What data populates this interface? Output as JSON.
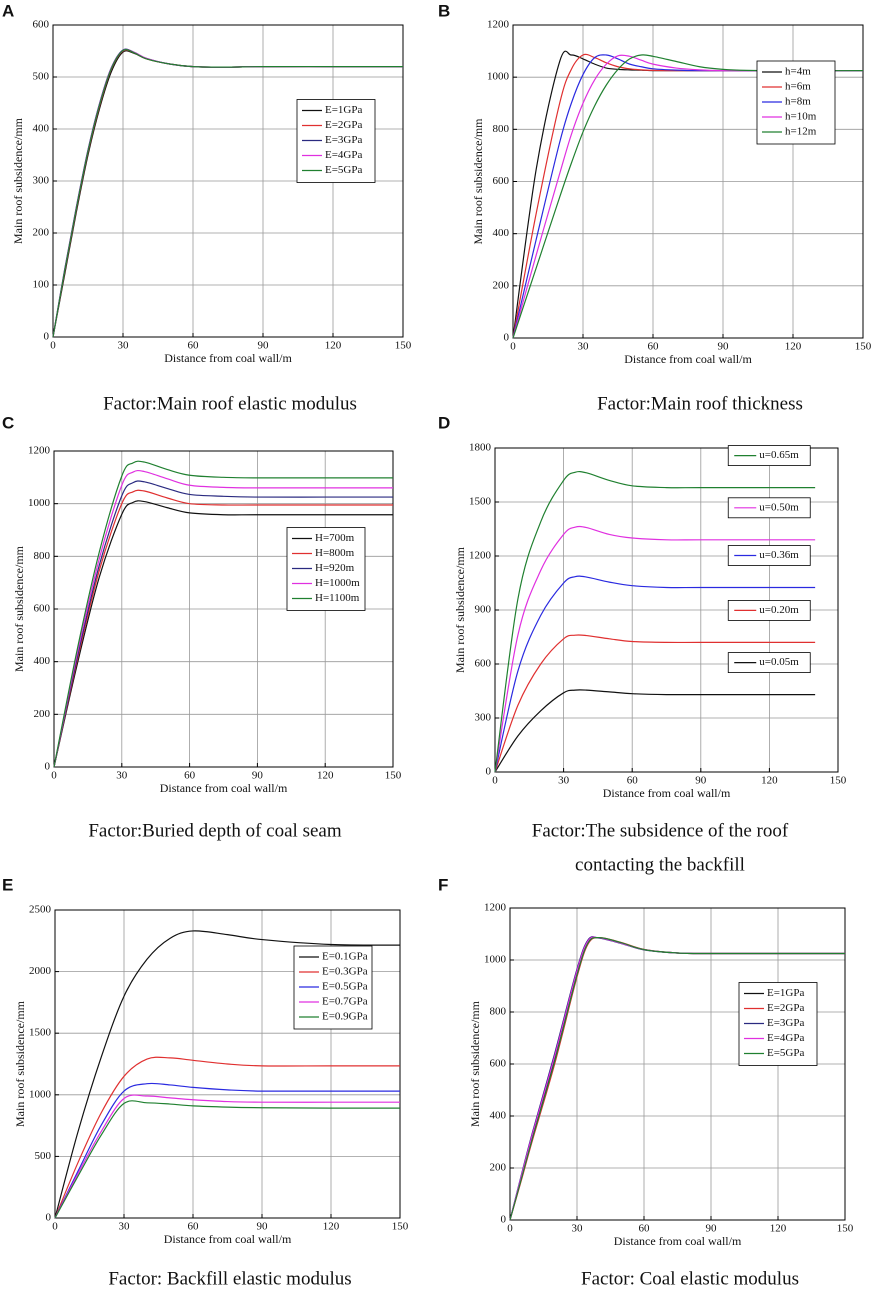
{
  "chart_data": [
    {
      "type": "line",
      "label": "A",
      "caption": [
        "Factor:Main roof elastic modulus"
      ],
      "xlabel": "Distance from coal wall/m",
      "ylabel": "Main roof subsidence/mm",
      "x": [
        0,
        5,
        10,
        15,
        20,
        25,
        30,
        35,
        40,
        50,
        60,
        75,
        90,
        120,
        150
      ],
      "series": [
        {
          "name": "E=1GPa",
          "color": "#111111",
          "values": [
            0,
            120,
            240,
            350,
            440,
            510,
            548,
            545,
            535,
            525,
            520,
            519,
            520,
            520,
            520
          ]
        },
        {
          "name": "E=2GPa",
          "color": "#e03030",
          "values": [
            0,
            125,
            245,
            355,
            445,
            515,
            550,
            546,
            535,
            525,
            520,
            519,
            520,
            520,
            520
          ]
        },
        {
          "name": "E=3GPa",
          "color": "#2a2a80",
          "values": [
            0,
            130,
            250,
            360,
            450,
            518,
            552,
            547,
            536,
            525,
            520,
            519,
            520,
            520,
            520
          ]
        },
        {
          "name": "E=4GPa",
          "color": "#e030e0",
          "values": [
            0,
            128,
            248,
            358,
            448,
            517,
            551,
            547,
            536,
            525,
            520,
            519,
            520,
            520,
            520
          ]
        },
        {
          "name": "E=5GPa",
          "color": "#208030",
          "values": [
            0,
            127,
            247,
            357,
            447,
            516,
            551,
            546,
            535,
            525,
            520,
            519,
            520,
            520,
            520
          ]
        }
      ],
      "xlim": [
        0,
        150
      ],
      "ylim": [
        0,
        600
      ],
      "xticks": [
        0,
        30,
        60,
        90,
        120,
        150
      ],
      "yticks": [
        0,
        100,
        200,
        300,
        400,
        500,
        600
      ],
      "grid": true,
      "legend": "center right"
    },
    {
      "type": "line",
      "label": "B",
      "caption": [
        "Factor:Main roof thickness"
      ],
      "xlabel": "Distance from coal wall/m",
      "ylabel": "Main roof subsidence/mm",
      "x": [
        0,
        10,
        20,
        25,
        30,
        35,
        40,
        45,
        50,
        55,
        60,
        70,
        80,
        90,
        100,
        120,
        150
      ],
      "series": [
        {
          "name": "h=4m",
          "color": "#111111",
          "values": [
            0,
            650,
            1060,
            1085,
            1070,
            1050,
            1035,
            1030,
            1028,
            1027,
            1025,
            1025,
            1025,
            1025,
            1025,
            1025,
            1025
          ]
        },
        {
          "name": "h=6m",
          "color": "#e03030",
          "values": [
            0,
            480,
            900,
            1030,
            1085,
            1075,
            1055,
            1040,
            1032,
            1028,
            1026,
            1025,
            1025,
            1025,
            1025,
            1025,
            1025
          ]
        },
        {
          "name": "h=8m",
          "color": "#2a2ae0",
          "values": [
            0,
            380,
            750,
            900,
            1010,
            1075,
            1085,
            1070,
            1050,
            1040,
            1032,
            1027,
            1025,
            1025,
            1025,
            1025,
            1025
          ]
        },
        {
          "name": "h=10m",
          "color": "#e030e0",
          "values": [
            0,
            320,
            630,
            780,
            900,
            990,
            1050,
            1082,
            1080,
            1065,
            1050,
            1035,
            1028,
            1025,
            1025,
            1025,
            1025
          ]
        },
        {
          "name": "h=12m",
          "color": "#208030",
          "values": [
            0,
            270,
            540,
            670,
            790,
            890,
            970,
            1030,
            1070,
            1085,
            1080,
            1060,
            1040,
            1030,
            1026,
            1025,
            1025
          ]
        }
      ],
      "xlim": [
        0,
        150
      ],
      "ylim": [
        0,
        1200
      ],
      "xticks": [
        0,
        30,
        60,
        90,
        120,
        150
      ],
      "yticks": [
        0,
        200,
        400,
        600,
        800,
        1000,
        1200
      ],
      "grid": true,
      "legend": "upper right"
    },
    {
      "type": "line",
      "label": "C",
      "caption": [
        "Factor:Buried depth of coal seam"
      ],
      "xlabel": "Distance from coal wall/m",
      "ylabel": "Main roof subsidence/mm",
      "x": [
        0,
        10,
        20,
        30,
        35,
        40,
        50,
        60,
        75,
        90,
        120,
        150
      ],
      "series": [
        {
          "name": "H=700m",
          "color": "#111111",
          "values": [
            0,
            380,
            720,
            960,
            1005,
            1008,
            985,
            965,
            958,
            958,
            958,
            958
          ]
        },
        {
          "name": "H=800m",
          "color": "#e03030",
          "values": [
            0,
            395,
            745,
            1000,
            1045,
            1048,
            1022,
            1000,
            995,
            995,
            995,
            995
          ]
        },
        {
          "name": "H=920m",
          "color": "#2a2a80",
          "values": [
            0,
            405,
            765,
            1030,
            1080,
            1083,
            1058,
            1035,
            1028,
            1025,
            1025,
            1025
          ]
        },
        {
          "name": "H=1000m",
          "color": "#e030e0",
          "values": [
            0,
            420,
            790,
            1070,
            1120,
            1122,
            1095,
            1070,
            1062,
            1060,
            1060,
            1060
          ]
        },
        {
          "name": "H=1100m",
          "color": "#208030",
          "values": [
            0,
            435,
            815,
            1105,
            1155,
            1158,
            1130,
            1108,
            1100,
            1098,
            1098,
            1098
          ]
        }
      ],
      "xlim": [
        0,
        150
      ],
      "ylim": [
        0,
        1200
      ],
      "xticks": [
        0,
        30,
        60,
        90,
        120,
        150
      ],
      "yticks": [
        0,
        200,
        400,
        600,
        800,
        1000,
        1200
      ],
      "grid": true,
      "legend": "center right"
    },
    {
      "type": "line",
      "label": "D",
      "caption": [
        "Factor:The subsidence of the roof",
        "contacting the backfill"
      ],
      "xlabel": "Distance from coal wall/m",
      "ylabel": "Main roof subsidence/mm",
      "x": [
        0,
        10,
        20,
        30,
        35,
        40,
        50,
        60,
        75,
        90,
        120,
        140
      ],
      "series": [
        {
          "name": "u=0.05m",
          "color": "#111111",
          "values": [
            0,
            200,
            340,
            440,
            455,
            455,
            445,
            435,
            430,
            430,
            430,
            430
          ]
        },
        {
          "name": "u=0.20m",
          "color": "#e03030",
          "values": [
            0,
            370,
            600,
            740,
            760,
            758,
            740,
            725,
            720,
            720,
            720,
            720
          ]
        },
        {
          "name": "u=0.36m",
          "color": "#2a2ae0",
          "values": [
            0,
            560,
            870,
            1050,
            1085,
            1083,
            1055,
            1035,
            1025,
            1025,
            1025,
            1025
          ]
        },
        {
          "name": "u=0.50m",
          "color": "#e030e0",
          "values": [
            0,
            760,
            1120,
            1320,
            1360,
            1358,
            1320,
            1300,
            1290,
            1290,
            1290,
            1290
          ]
        },
        {
          "name": "u=0.65m",
          "color": "#208030",
          "values": [
            0,
            960,
            1390,
            1620,
            1665,
            1662,
            1620,
            1590,
            1580,
            1580,
            1580,
            1580
          ]
        }
      ],
      "xlim": [
        0,
        150
      ],
      "ylim": [
        0,
        1800
      ],
      "xticks": [
        0,
        30,
        60,
        90,
        120,
        150
      ],
      "yticks": [
        0,
        300,
        600,
        900,
        1200,
        1500,
        1800
      ],
      "grid": true,
      "legend": "beside each line"
    },
    {
      "type": "line",
      "label": "E",
      "caption": [
        "Factor: Backfill elastic modulus"
      ],
      "xlabel": "Distance from coal wall/m",
      "ylabel": "Main roof subsidence/mm",
      "x": [
        0,
        10,
        20,
        30,
        40,
        50,
        60,
        75,
        90,
        120,
        150
      ],
      "series": [
        {
          "name": "E=0.1GPa",
          "color": "#111111",
          "values": [
            0,
            700,
            1300,
            1800,
            2100,
            2270,
            2330,
            2300,
            2260,
            2220,
            2215
          ]
        },
        {
          "name": "E=0.3GPa",
          "color": "#e03030",
          "values": [
            0,
            450,
            850,
            1150,
            1290,
            1300,
            1280,
            1250,
            1235,
            1235,
            1235
          ]
        },
        {
          "name": "E=0.5GPa",
          "color": "#2a2ae0",
          "values": [
            0,
            380,
            750,
            1030,
            1090,
            1080,
            1060,
            1040,
            1030,
            1030,
            1030
          ]
        },
        {
          "name": "E=0.7GPa",
          "color": "#e030e0",
          "values": [
            0,
            360,
            700,
            970,
            990,
            975,
            960,
            945,
            940,
            940,
            940
          ]
        },
        {
          "name": "E=0.9GPa",
          "color": "#208030",
          "values": [
            0,
            340,
            670,
            930,
            935,
            925,
            910,
            900,
            895,
            892,
            892
          ]
        }
      ],
      "xlim": [
        0,
        150
      ],
      "ylim": [
        0,
        2500
      ],
      "xticks": [
        0,
        30,
        60,
        90,
        120,
        150
      ],
      "yticks": [
        0,
        500,
        1000,
        1500,
        2000,
        2500
      ],
      "grid": true,
      "legend": "upper right"
    },
    {
      "type": "line",
      "label": "F",
      "caption": [
        "Factor: Coal elastic modulus"
      ],
      "xlabel": "Distance from coal wall/m",
      "ylabel": "Main roof subsidence/mm",
      "x": [
        0,
        5,
        10,
        20,
        30,
        35,
        40,
        50,
        60,
        75,
        90,
        120,
        150
      ],
      "series": [
        {
          "name": "E=1GPa",
          "color": "#111111",
          "values": [
            0,
            160,
            320,
            620,
            950,
            1070,
            1085,
            1065,
            1040,
            1027,
            1025,
            1025,
            1025
          ]
        },
        {
          "name": "E=2GPa",
          "color": "#e03030",
          "values": [
            0,
            150,
            305,
            600,
            935,
            1062,
            1086,
            1067,
            1041,
            1027,
            1025,
            1025,
            1025
          ]
        },
        {
          "name": "E=3GPa",
          "color": "#2a2a80",
          "values": [
            0,
            170,
            335,
            640,
            965,
            1078,
            1084,
            1063,
            1039,
            1027,
            1025,
            1025,
            1025
          ]
        },
        {
          "name": "E=4GPa",
          "color": "#e030e0",
          "values": [
            0,
            165,
            328,
            630,
            958,
            1074,
            1085,
            1064,
            1040,
            1027,
            1025,
            1025,
            1025
          ]
        },
        {
          "name": "E=5GPa",
          "color": "#208030",
          "values": [
            0,
            155,
            312,
            610,
            942,
            1066,
            1086,
            1066,
            1040,
            1027,
            1025,
            1025,
            1025
          ]
        }
      ],
      "xlim": [
        0,
        150
      ],
      "ylim": [
        0,
        1200
      ],
      "xticks": [
        0,
        30,
        60,
        90,
        120,
        150
      ],
      "yticks": [
        0,
        200,
        400,
        600,
        800,
        1000,
        1200
      ],
      "grid": true,
      "legend": "center right"
    }
  ]
}
